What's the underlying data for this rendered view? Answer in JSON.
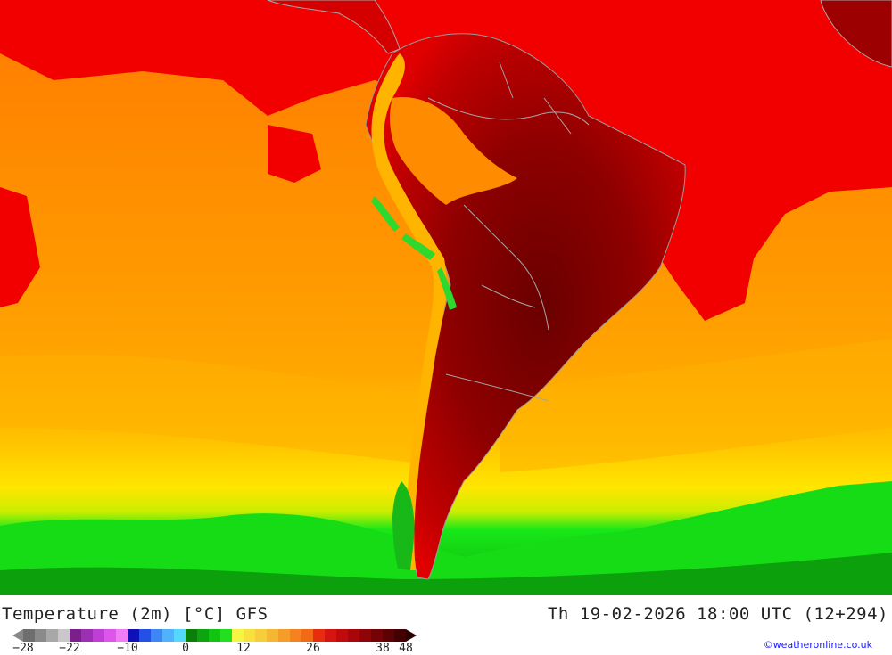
{
  "title": "Temperature (2m) [°C] GFS",
  "datetime": "Th 19-02-2026 18:00 UTC (12+294)",
  "credit": "©weatheronline.co.uk",
  "legend": {
    "colors": [
      "#6e6e6e",
      "#8a8a8a",
      "#a8a8a8",
      "#c8c8c8",
      "#7a1f8c",
      "#9c2fb4",
      "#bf3ed6",
      "#dd55ea",
      "#f07cf6",
      "#1010b8",
      "#2350e6",
      "#3d86f5",
      "#4fb3fb",
      "#55d9fb",
      "#0a7f0a",
      "#0ea40e",
      "#12c412",
      "#20e020",
      "#f5f542",
      "#f7e23c",
      "#f6cd3a",
      "#f5b633",
      "#f59c2a",
      "#f58220",
      "#f06a18",
      "#e82d0e",
      "#d61410",
      "#c00a0c",
      "#a8060a",
      "#8e0408",
      "#760206",
      "#5c0104",
      "#420002"
    ],
    "ticks": [
      "-28",
      "-22",
      "-10",
      "0",
      "12",
      "26",
      "38",
      "48"
    ]
  },
  "map": {
    "region": "South America",
    "palette": {
      "ocean_hot": "#ff0000",
      "ocean_warm": "#ff8800",
      "ocean_mild": "#ffa500",
      "ocean_cool": "#ffc000",
      "cold_band": "#ffff00",
      "polar": "#11dd11",
      "land_hot": "#c00000",
      "land_extreme": "#6a0000",
      "border": "#a6a6a6"
    }
  }
}
